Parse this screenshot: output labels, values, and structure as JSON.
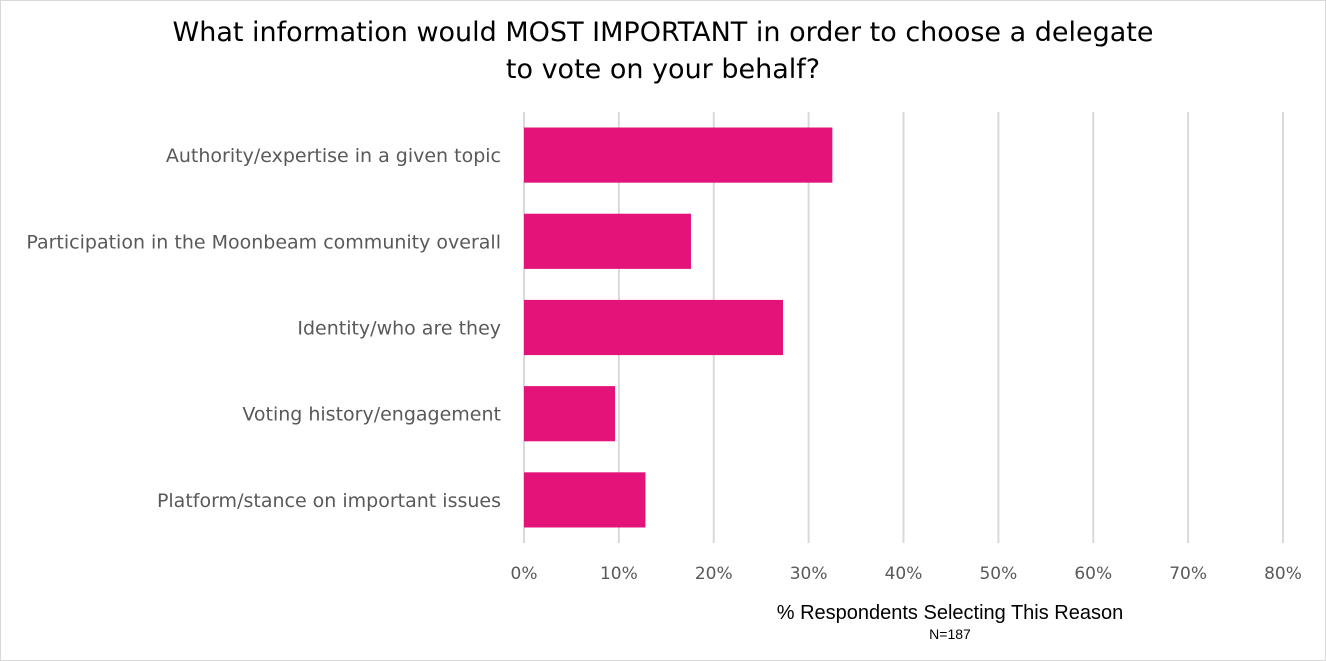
{
  "chart_data": {
    "type": "bar",
    "orientation": "horizontal",
    "title_lines": [
      "What information would MOST IMPORTANT in order to choose a delegate",
      "to vote on your behalf?"
    ],
    "categories": [
      "Authority/expertise in a given topic",
      "Participation in the Moonbeam community overall",
      "Identity/who are they",
      "Voting history/engagement",
      "Platform/stance on important issues"
    ],
    "series": [
      {
        "values": [
          0.325,
          0.176,
          0.273,
          0.096,
          0.128
        ]
      }
    ],
    "xlim": [
      0,
      0.8
    ],
    "xticks": [
      0,
      0.1,
      0.2,
      0.3,
      0.4,
      0.5,
      0.6,
      0.7,
      0.8
    ],
    "xtick_labels": [
      "0%",
      "10%",
      "20%",
      "30%",
      "40%",
      "50%",
      "60%",
      "70%",
      "80%"
    ],
    "xlabel": "% Respondents Selecting This Reason",
    "note": "N=187",
    "grid": "vertical",
    "legend": "none",
    "bar_color": "#e3137a",
    "grid_color": "#d9d9d9",
    "tick_label_color": "#595959"
  }
}
